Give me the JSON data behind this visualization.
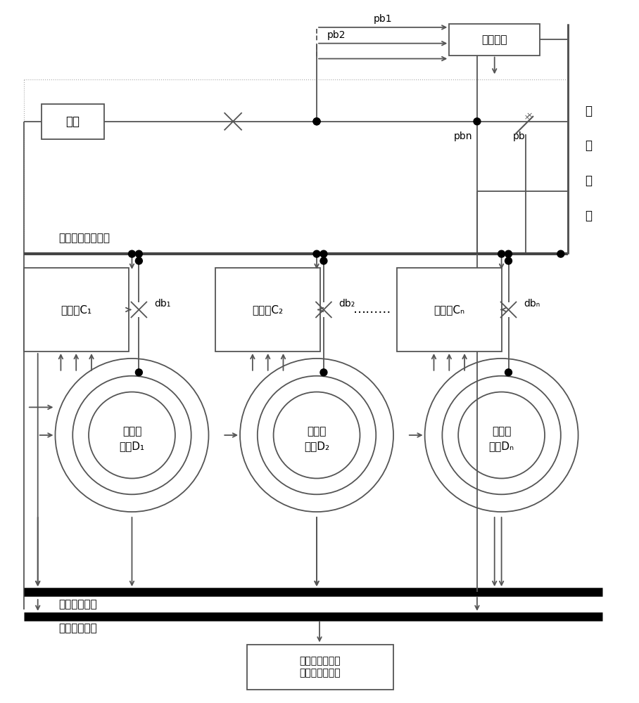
{
  "bg_color": "#ffffff",
  "lc": "#555555",
  "right_bus_label": [
    "电",
    "网",
    "母",
    "线"
  ],
  "grid_bus_label": "柴油发电机组母线",
  "field_bus_label": "现场通讯总线",
  "upper_bus_label": "上位通讯总线",
  "load_label": "负荷",
  "exec_label": "执行模块",
  "upper_pc_label": "上位机显示控制\n效果与状态检测",
  "ctrl_labels": [
    "控制器C₁",
    "控制器C₂",
    "控制器Cₙ"
  ],
  "gen_labels": [
    "柴油发\n电机D₁",
    "柴油发\n电机D₂",
    "柴油发\n电机Dₙ"
  ],
  "db_labels": [
    "db₁",
    "db₂",
    "dbₙ"
  ],
  "dots_label": "………"
}
